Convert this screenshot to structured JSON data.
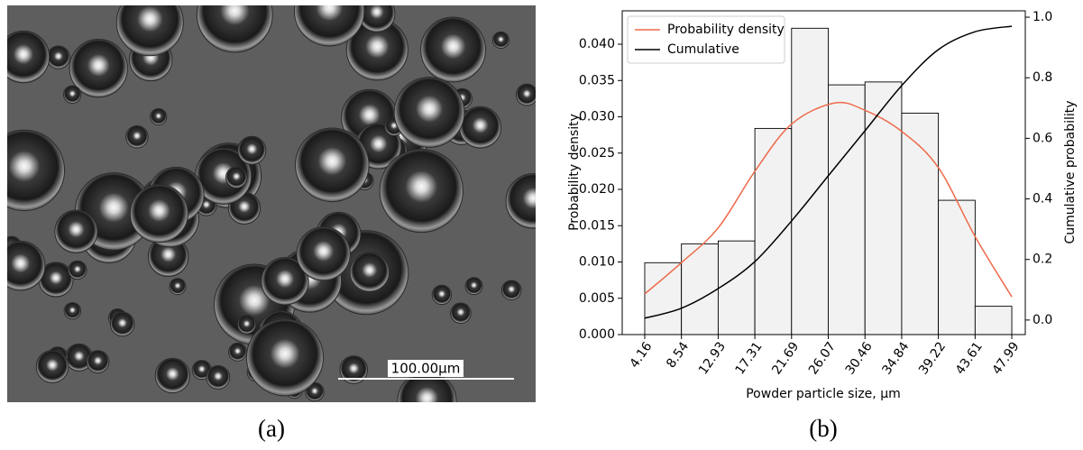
{
  "image_panel": {
    "scale_bar_label": "100.00µm",
    "caption": "(a)"
  },
  "chart_data": {
    "type": "histogram",
    "caption": "(b)",
    "xlabel": "Powder particle size, µm",
    "ylabel": "Probability density",
    "y2label": "Cumulative probability",
    "bins": [
      4.16,
      8.54,
      12.93,
      17.31,
      21.69,
      26.07,
      30.46,
      34.84,
      39.22,
      43.61,
      47.99
    ],
    "values": [
      0.0099,
      0.0125,
      0.0129,
      0.0284,
      0.0422,
      0.0344,
      0.0348,
      0.0305,
      0.0185,
      0.0039
    ],
    "color": "#f2f2f2",
    "xlim": [
      1.47,
      49.6
    ],
    "xticks": [
      4.16,
      8.54,
      12.93,
      17.31,
      21.69,
      26.07,
      30.46,
      34.84,
      39.22,
      43.61,
      47.99
    ],
    "ylim": [
      0,
      0.0446
    ],
    "yticks": [
      {
        "value": 0,
        "label": "0.000"
      },
      {
        "value": 0.005,
        "label": "0.005"
      },
      {
        "value": 0.01,
        "label": "0.010"
      },
      {
        "value": 0.015,
        "label": "0.015"
      },
      {
        "value": 0.02,
        "label": "0.020"
      },
      {
        "value": 0.025,
        "label": "0.025"
      },
      {
        "value": 0.03,
        "label": "0.030"
      },
      {
        "value": 0.035,
        "label": "0.035"
      },
      {
        "value": 0.04,
        "label": "0.040"
      }
    ],
    "y2lim": [
      -0.048,
      1.021
    ],
    "y2ticks": [
      {
        "value": 0,
        "label": "0.0"
      },
      {
        "value": 0.2,
        "label": "0.2"
      },
      {
        "value": 0.4,
        "label": "0.4"
      },
      {
        "value": 0.6,
        "label": "0.6"
      },
      {
        "value": 0.8,
        "label": "0.8"
      },
      {
        "value": 1,
        "label": "1.0"
      }
    ],
    "legend": "upper left",
    "series": [
      {
        "name": "Probability density",
        "type": "line",
        "color": "#ee6a4a",
        "x": [
          4.16,
          8.54,
          12.93,
          17.31,
          21.69,
          26.8,
          30.46,
          34.84,
          39.22,
          43.61,
          47.99
        ],
        "values": [
          0.0056,
          0.0099,
          0.0147,
          0.0225,
          0.029,
          0.0319,
          0.0309,
          0.028,
          0.023,
          0.0135,
          0.0052
        ]
      },
      {
        "name": "Cumulative",
        "type": "line",
        "color": "#000000",
        "axis": "y2",
        "x": [
          4.16,
          8.54,
          12.93,
          17.31,
          21.69,
          26.07,
          30.46,
          34.84,
          39.22,
          43.61,
          47.99
        ],
        "values": [
          0.006,
          0.039,
          0.104,
          0.193,
          0.327,
          0.476,
          0.625,
          0.774,
          0.893,
          0.952,
          0.97
        ]
      }
    ]
  }
}
